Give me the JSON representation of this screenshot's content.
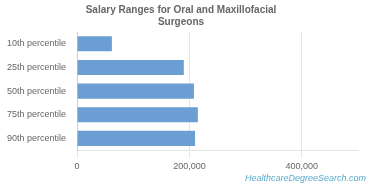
{
  "chart_data": {
    "type": "bar",
    "orientation": "horizontal",
    "title": "Salary Ranges for Oral and Maxillofacial\nSurgeons",
    "categories": [
      "10th percentile",
      "25th percentile",
      "50th percentile",
      "75th percentile",
      "90th percentile"
    ],
    "values": [
      62000,
      190000,
      208000,
      215000,
      210000
    ],
    "color": "#6b9ed2",
    "xlim": [
      0,
      500000
    ],
    "xticks": [
      0,
      {
        "value": 200000,
        "label": "200,000"
      },
      {
        "value": 400000,
        "label": "400,000"
      }
    ],
    "grid": true,
    "annotations": [
      "HealthcareDegreeSearch.com"
    ]
  }
}
